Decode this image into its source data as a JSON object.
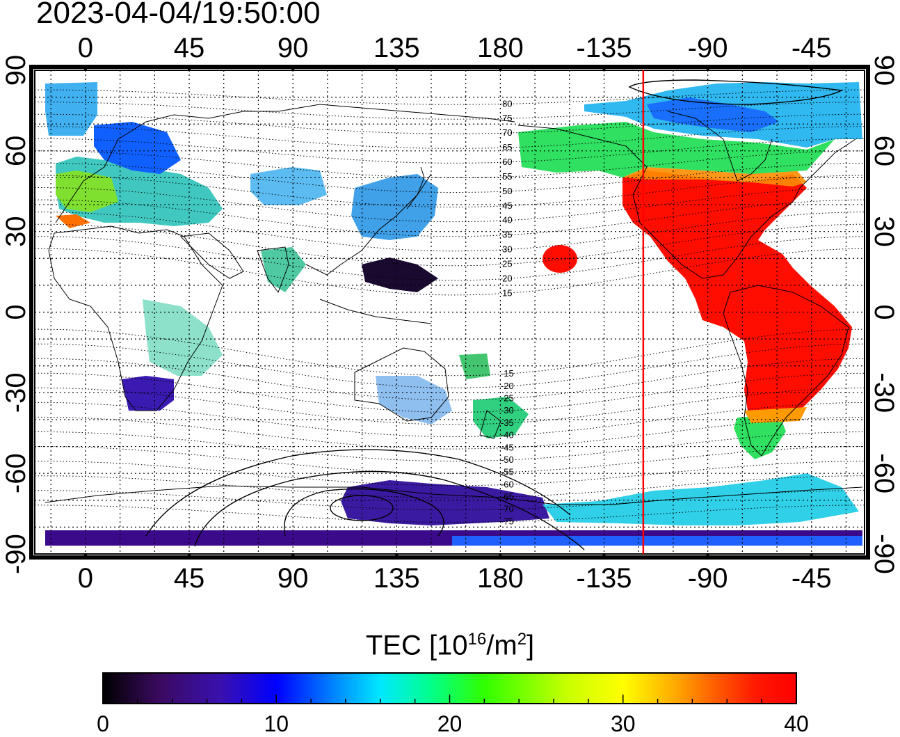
{
  "timestamp": "2023-04-04/19:50:00",
  "map": {
    "lon_ticks_top": [
      "0",
      "45",
      "90",
      "135",
      "180",
      "-135",
      "-90",
      "-45"
    ],
    "lon_ticks_bottom": [
      "0",
      "45",
      "90",
      "135",
      "180",
      "-135",
      "-90",
      "-45"
    ],
    "lat_ticks_left": [
      "90",
      "60",
      "30",
      "0",
      "-30",
      "-60",
      "-90"
    ],
    "lat_ticks_right": [
      "90",
      "60",
      "30",
      "0",
      "-30",
      "-60",
      "-90"
    ],
    "lon_tick_values": [
      0,
      45,
      90,
      135,
      180,
      -135,
      -90,
      -45
    ],
    "lat_tick_values": [
      90,
      60,
      30,
      0,
      -30,
      -60,
      -90
    ],
    "lon_range": [
      -22,
      338
    ],
    "lat_range": [
      -90,
      90
    ],
    "terminator_longitude": -118,
    "terminator_color": "#ff0000",
    "magnetic_latitude_labels_north": [
      "80",
      "75",
      "70",
      "65",
      "60",
      "55",
      "50",
      "45",
      "40",
      "35",
      "30",
      "25",
      "20",
      "15"
    ],
    "magnetic_latitude_labels_south": [
      "-15",
      "-20",
      "-25",
      "-30",
      "-35",
      "-40",
      "-45",
      "-50",
      "-55",
      "-60",
      "-65",
      "-70",
      "-75"
    ]
  },
  "colorbar": {
    "title_prefix": "TEC  [10",
    "title_exp1": "16",
    "title_mid": "/m",
    "title_exp2": "2",
    "title_suffix": "]",
    "tick_labels": [
      "0",
      "10",
      "20",
      "30",
      "40"
    ],
    "tick_values": [
      0,
      10,
      20,
      30,
      40
    ],
    "range": [
      0,
      40
    ],
    "colors": [
      "#000000",
      "#3a0a5e",
      "#3a10b0",
      "#0030ff",
      "#0080ff",
      "#00e0ff",
      "#00ff90",
      "#30ff00",
      "#c0ff00",
      "#ffff00",
      "#ffb000",
      "#ff6000",
      "#ff1a00",
      "#ff0000"
    ]
  }
}
